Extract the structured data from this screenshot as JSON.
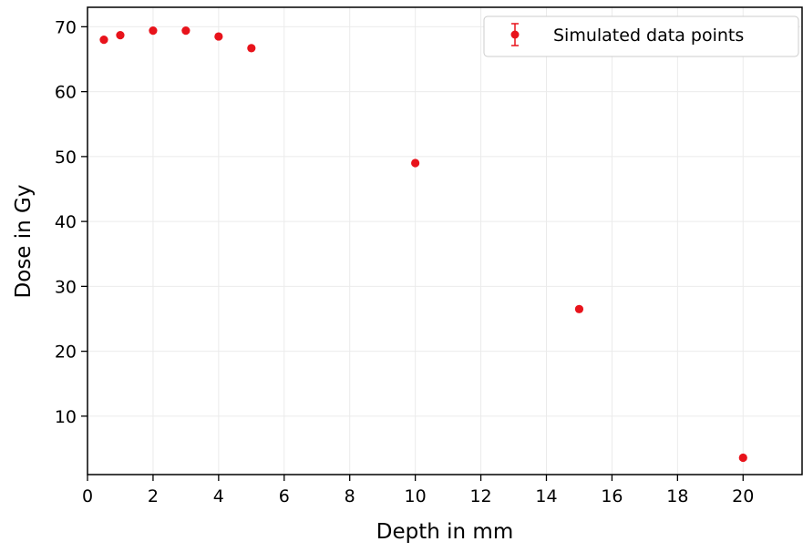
{
  "chart_data": {
    "type": "scatter",
    "title": "",
    "xlabel": "Depth in mm",
    "ylabel": "Dose in Gy",
    "xlim": [
      0,
      21.8
    ],
    "ylim": [
      1,
      73
    ],
    "xticks": [
      0,
      2,
      4,
      6,
      8,
      10,
      12,
      14,
      16,
      18,
      20
    ],
    "yticks": [
      10,
      20,
      30,
      40,
      50,
      60,
      70
    ],
    "grid": true,
    "legend_position": "top-right",
    "series": [
      {
        "name": "Simulated data points",
        "marker": "circle",
        "error_bars": true,
        "color": "#e8131b",
        "x": [
          0.5,
          1,
          2,
          3,
          4,
          5,
          10,
          15,
          20
        ],
        "y": [
          68.0,
          68.7,
          69.4,
          69.4,
          68.5,
          66.7,
          49.0,
          26.5,
          3.6
        ]
      }
    ]
  },
  "colors": {
    "marker": "#e8131b",
    "grid": "#ebebeb",
    "axis": "#000000",
    "background": "#ffffff"
  }
}
